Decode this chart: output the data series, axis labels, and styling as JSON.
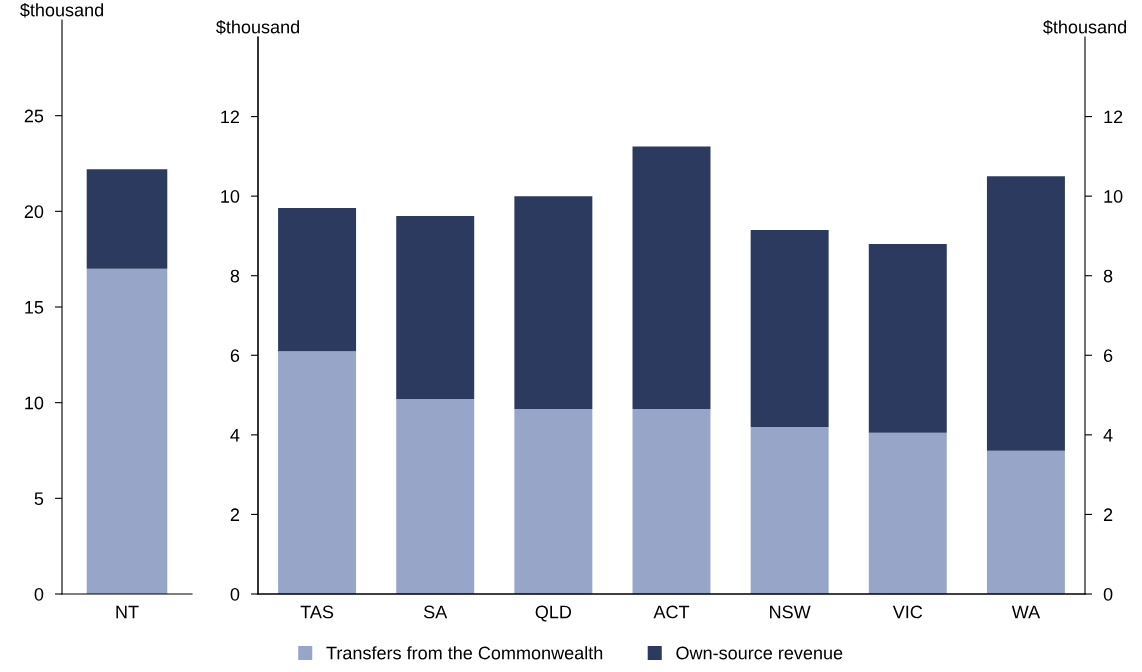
{
  "chart_data": [
    {
      "type": "bar",
      "stacked": true,
      "ylabel": "$thousand",
      "categories": [
        "NT"
      ],
      "ylim": [
        0,
        30
      ],
      "yticks": [
        0,
        5,
        10,
        15,
        20,
        25
      ],
      "series": [
        {
          "color": "#97a6c8",
          "values": [
            17.0
          ]
        },
        {
          "color": "#2b3a5e",
          "values": [
            5.2
          ]
        }
      ]
    },
    {
      "type": "bar",
      "stacked": true,
      "ylabel": "$thousand",
      "y2label": "$thousand",
      "categories": [
        "TAS",
        "SA",
        "QLD",
        "ACT",
        "NSW",
        "VIC",
        "WA"
      ],
      "ylim": [
        0,
        14
      ],
      "yticks": [
        0,
        2,
        4,
        6,
        8,
        10,
        12
      ],
      "y2lim": [
        0,
        14
      ],
      "y2ticks": [
        0,
        2,
        4,
        6,
        8,
        10,
        12
      ],
      "legend": "bottom",
      "series": [
        {
          "name": "Transfers from the Commonwealth",
          "color": "#97a6c8",
          "values": [
            6.1,
            4.9,
            4.65,
            4.65,
            4.2,
            4.05,
            3.6
          ]
        },
        {
          "name": "Own-source revenue",
          "color": "#2b3a5e",
          "values": [
            3.6,
            4.6,
            5.35,
            6.6,
            4.95,
            4.75,
            6.9
          ]
        }
      ]
    }
  ]
}
